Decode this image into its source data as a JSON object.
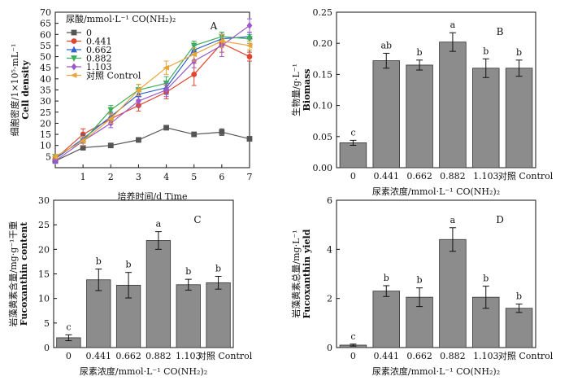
{
  "chart_data": [
    {
      "panel": "A",
      "type": "line",
      "xlabel": "培养时间/d Time",
      "ylabel_cn": "细胞密度/1×10⁵·mL⁻¹",
      "ylabel_en": "Cell density",
      "xlim": [
        0,
        7
      ],
      "ylim": [
        0,
        70
      ],
      "xticks": [
        "1",
        "2",
        "3",
        "4",
        "5",
        "6",
        "7"
      ],
      "yticks": [
        "5",
        "10",
        "15",
        "20",
        "25",
        "30",
        "35",
        "40",
        "45",
        "50",
        "55",
        "60",
        "65",
        "70"
      ],
      "legend_title": "尿酸/mmol·L⁻¹ CO(NH₂)₂",
      "legend_position": "top-left",
      "x": [
        0,
        1,
        2,
        3,
        4,
        5,
        6,
        7
      ],
      "series": [
        {
          "name": "0",
          "color": "#555555",
          "marker": "square",
          "values": [
            3,
            9,
            10,
            12.5,
            18,
            15,
            16,
            13
          ],
          "errors": [
            1,
            1,
            0.8,
            1,
            1,
            1,
            1.5,
            1
          ]
        },
        {
          "name": "0.441",
          "color": "#e0452d",
          "marker": "circle",
          "values": [
            4,
            15,
            22,
            28,
            34,
            42,
            56,
            50
          ],
          "errors": [
            1,
            2.5,
            2.5,
            2.5,
            3,
            5,
            4,
            2
          ]
        },
        {
          "name": "0.662",
          "color": "#2f63c9",
          "marker": "triangle",
          "values": [
            4,
            13,
            23,
            33,
            36,
            53,
            58,
            59
          ],
          "errors": [
            1,
            2,
            2,
            2.5,
            3,
            2,
            3,
            2
          ]
        },
        {
          "name": "0.882",
          "color": "#3fae5a",
          "marker": "triangle-down",
          "values": [
            5,
            12,
            26,
            35,
            38,
            55,
            59,
            58
          ],
          "errors": [
            1,
            2,
            2,
            2.5,
            3,
            2,
            2,
            2
          ]
        },
        {
          "name": "1.103",
          "color": "#9b59c9",
          "marker": "diamond",
          "values": [
            3,
            12,
            20,
            30,
            35,
            48,
            55,
            64
          ],
          "errors": [
            1,
            2,
            2,
            2.5,
            3,
            3,
            5,
            3
          ]
        },
        {
          "name": "对照 Control",
          "color": "#e8a53a",
          "marker": "triangle-left",
          "values": [
            5,
            12,
            22,
            35,
            45,
            51,
            57,
            55
          ],
          "errors": [
            1,
            2,
            2,
            2.5,
            3,
            3,
            3,
            2
          ]
        }
      ]
    },
    {
      "panel": "B",
      "type": "bar",
      "categories": [
        "0",
        "0.441",
        "0.662",
        "0.882",
        "1.103",
        "对照 Control"
      ],
      "values": [
        0.04,
        0.172,
        0.165,
        0.202,
        0.16,
        0.16
      ],
      "errors": [
        0.004,
        0.012,
        0.008,
        0.015,
        0.015,
        0.013
      ],
      "letters": [
        "c",
        "ab",
        "b",
        "a",
        "b",
        "b"
      ],
      "ylim": [
        0,
        0.25
      ],
      "yticks": [
        "0.00",
        "0.05",
        "0.10",
        "0.15",
        "0.20",
        "0.25"
      ],
      "ylabel_cn": "生物量/g·L⁻¹",
      "ylabel_en": "Biomass",
      "xlabel": "尿素浓度/mmol·L⁻¹ CO(NH₂)₂"
    },
    {
      "panel": "C",
      "type": "bar",
      "categories": [
        "0",
        "0.441",
        "0.662",
        "0.882",
        "1.103",
        "对照 Control"
      ],
      "values": [
        2,
        13.8,
        12.7,
        21.8,
        12.8,
        13.2
      ],
      "errors": [
        0.6,
        2.2,
        2.6,
        1.8,
        1.1,
        1.3
      ],
      "letters": [
        "c",
        "b",
        "b",
        "a",
        "b",
        "b"
      ],
      "ylim": [
        0,
        30
      ],
      "yticks": [
        "0",
        "5",
        "10",
        "15",
        "20",
        "25",
        "30"
      ],
      "ylabel_cn": "岩藻黄素含量/mg·g⁻¹干重",
      "ylabel_en": "Fucoxanthin content",
      "xlabel": "尿素浓度/mmol·L⁻¹ CO(NH₂)₂"
    },
    {
      "panel": "D",
      "type": "bar",
      "categories": [
        "0",
        "0.441",
        "0.662",
        "0.882",
        "1.103",
        "对照 Control"
      ],
      "values": [
        0.1,
        2.3,
        2.05,
        4.4,
        2.05,
        1.6
      ],
      "errors": [
        0.04,
        0.22,
        0.38,
        0.48,
        0.45,
        0.17
      ],
      "letters": [
        "c",
        "b",
        "b",
        "a",
        "b",
        "b"
      ],
      "ylim": [
        0,
        6
      ],
      "yticks": [
        "0",
        "2",
        "4",
        "6"
      ],
      "ylabel_cn": "岩藻黄素总量/mg·L⁻¹",
      "ylabel_en": "Fucoxanthin yield",
      "xlabel": "尿素浓度/mmol·L⁻¹ CO(NH₂)₂"
    }
  ]
}
